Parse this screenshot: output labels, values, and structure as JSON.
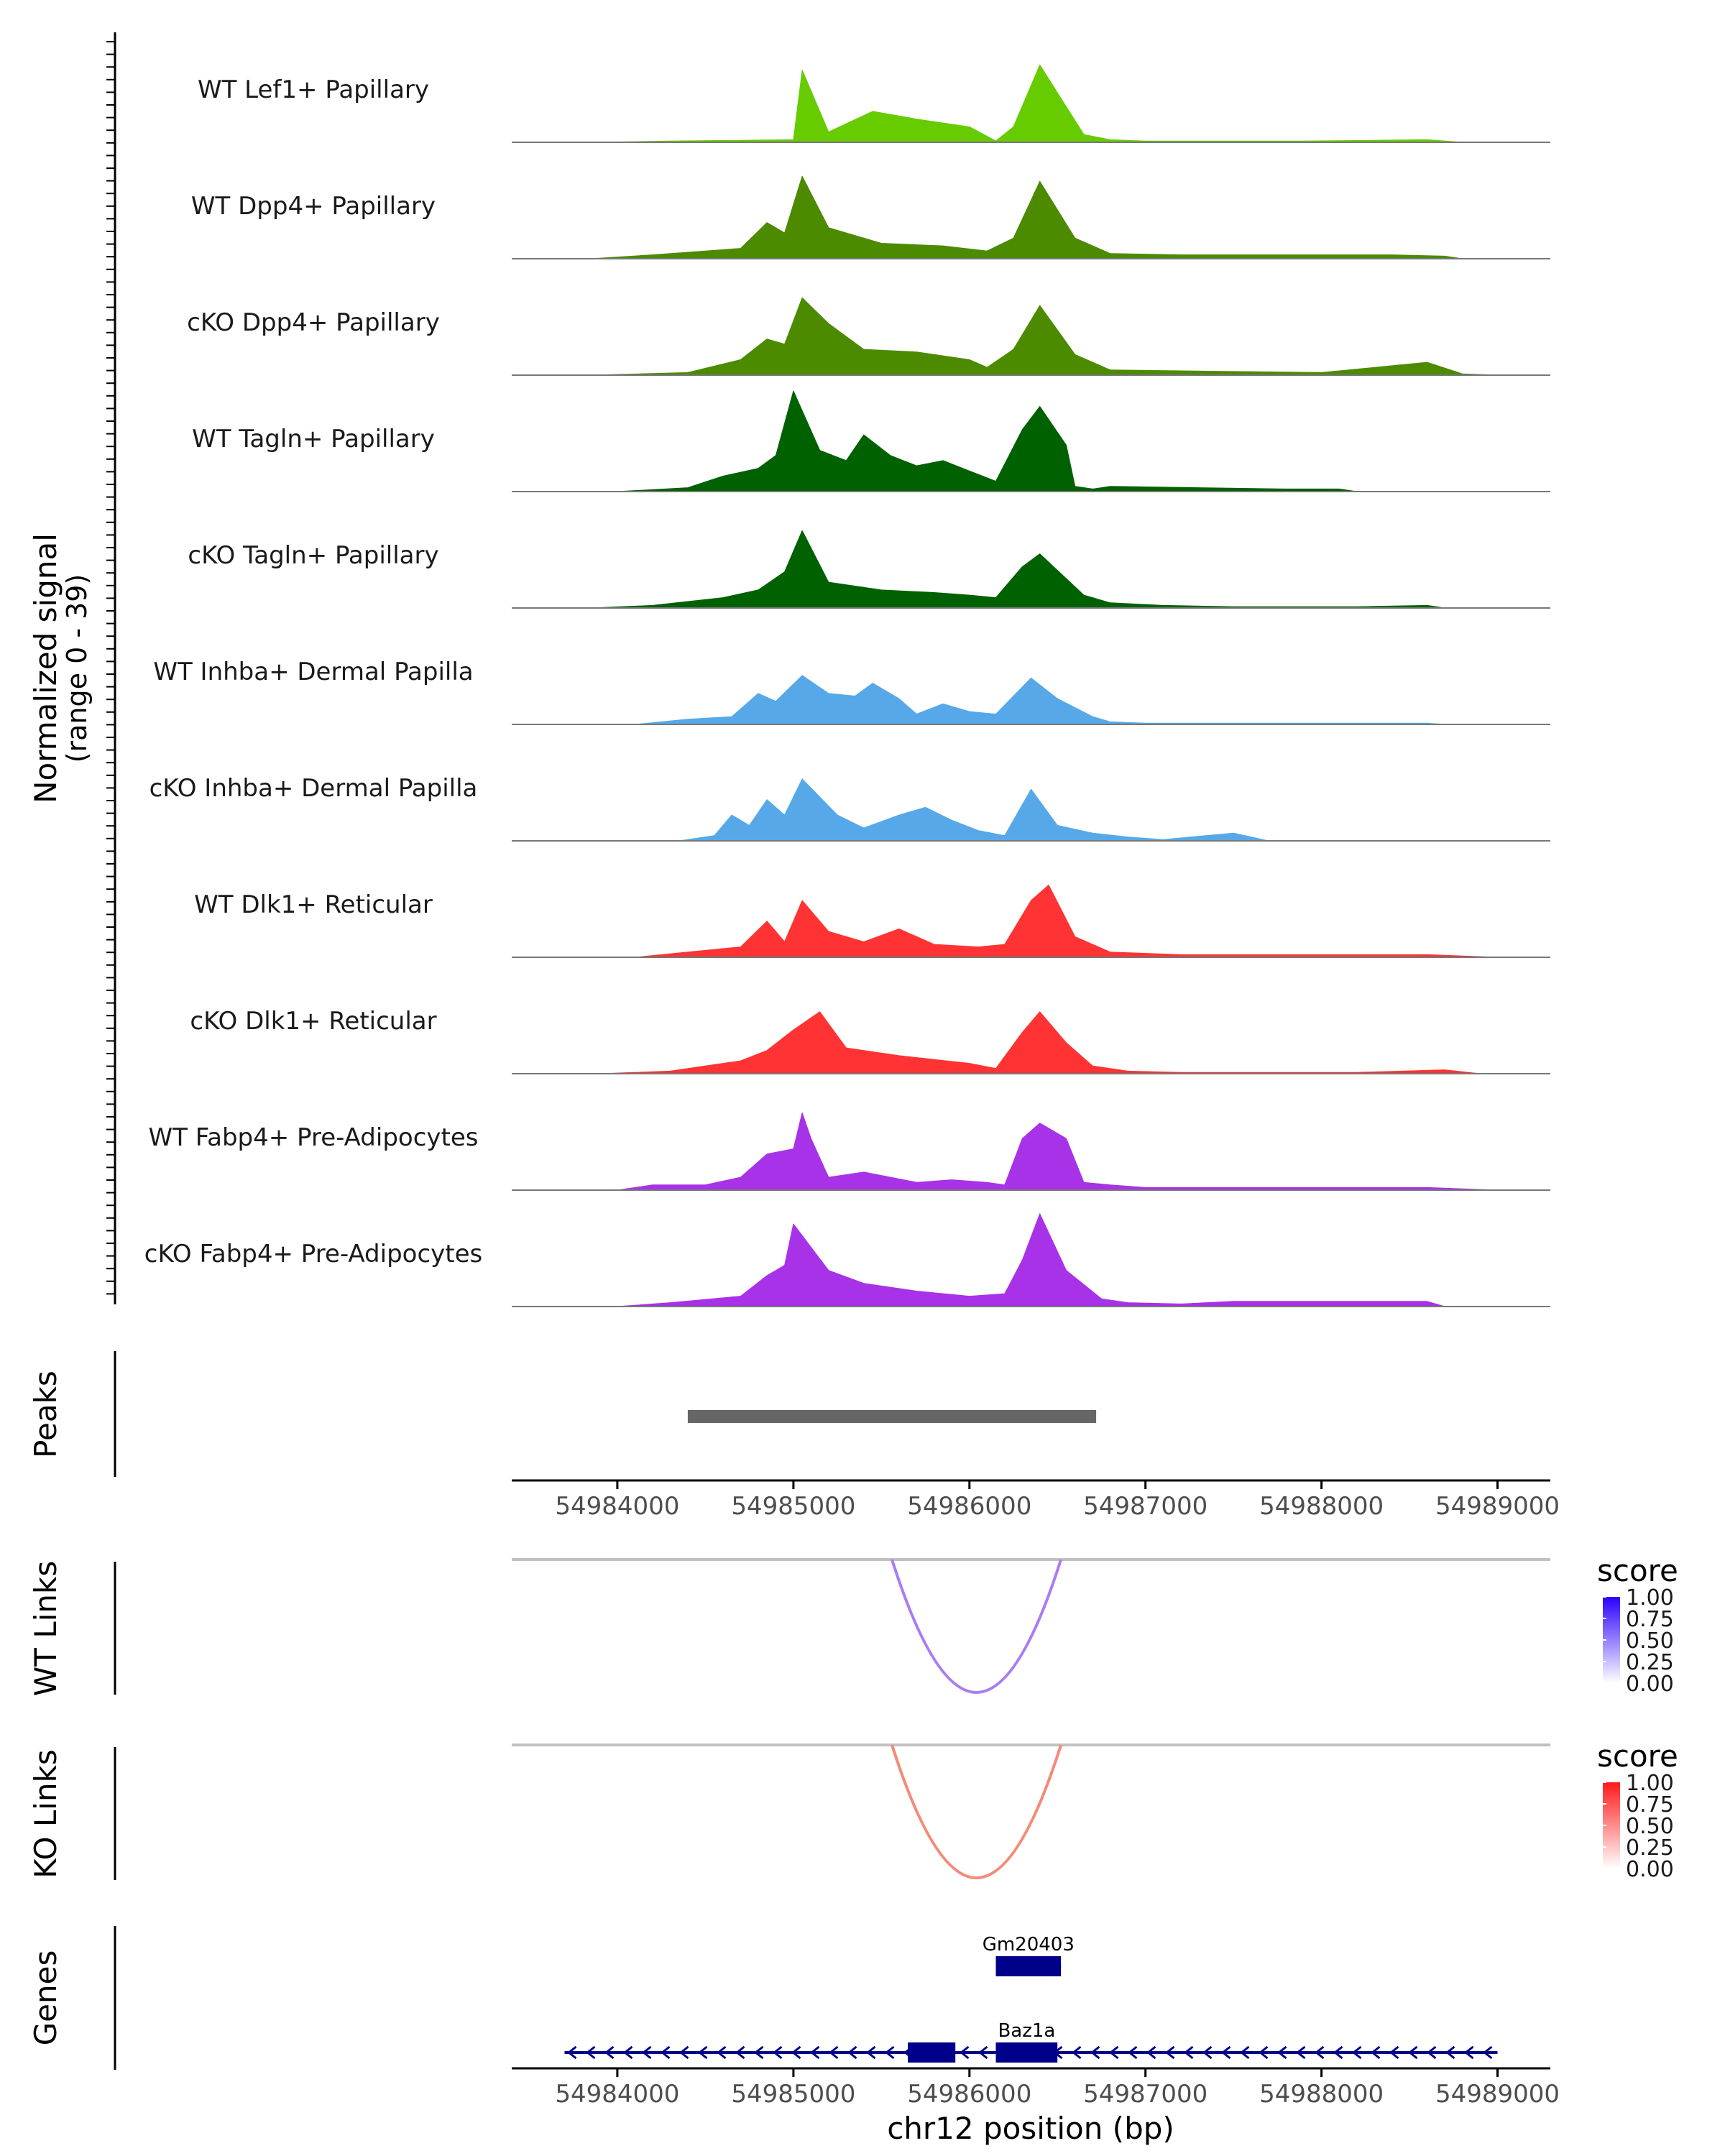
{
  "chart_data": {
    "type": "area",
    "title": "",
    "xlabel": "chr12 position (bp)",
    "ylabel": "Normalized signal",
    "ylabel_range": "(range 0 - 39)",
    "xlim": [
      54983400,
      54989300
    ],
    "ylim": [
      0,
      39
    ],
    "x_ticks": [
      54984000,
      54985000,
      54986000,
      54987000,
      54988000,
      54989000
    ],
    "x_tick_labels": [
      "54984000",
      "54985000",
      "54986000",
      "54987000",
      "54988000",
      "54989000"
    ],
    "series": [
      {
        "name": "WT Lef1+ Papillary",
        "color": "#66CC00",
        "points": [
          [
            54983900,
            0
          ],
          [
            54984300,
            0.5
          ],
          [
            54985000,
            1
          ],
          [
            54985050,
            28
          ],
          [
            54985200,
            4
          ],
          [
            54985450,
            12
          ],
          [
            54985700,
            9
          ],
          [
            54986000,
            6
          ],
          [
            54986150,
            0.5
          ],
          [
            54986250,
            6
          ],
          [
            54986400,
            30
          ],
          [
            54986650,
            3
          ],
          [
            54986800,
            1
          ],
          [
            54987000,
            0.5
          ],
          [
            54987900,
            0.5
          ],
          [
            54988600,
            1
          ],
          [
            54988800,
            0
          ]
        ]
      },
      {
        "name": "WT Dpp4+ Papillary",
        "color": "#4C8A00",
        "points": [
          [
            54983850,
            0
          ],
          [
            54984200,
            1.5
          ],
          [
            54984700,
            4
          ],
          [
            54984850,
            14
          ],
          [
            54984950,
            10
          ],
          [
            54985050,
            32
          ],
          [
            54985200,
            12
          ],
          [
            54985500,
            6
          ],
          [
            54985850,
            5
          ],
          [
            54986100,
            3
          ],
          [
            54986250,
            8
          ],
          [
            54986400,
            30
          ],
          [
            54986600,
            8
          ],
          [
            54986800,
            2
          ],
          [
            54987200,
            1.5
          ],
          [
            54987900,
            1.5
          ],
          [
            54988400,
            1.5
          ],
          [
            54988700,
            1
          ],
          [
            54988800,
            0
          ]
        ]
      },
      {
        "name": "cKO Dpp4+ Papillary",
        "color": "#4C8A00",
        "points": [
          [
            54983850,
            0
          ],
          [
            54984400,
            1
          ],
          [
            54984700,
            6
          ],
          [
            54984850,
            14
          ],
          [
            54984950,
            12
          ],
          [
            54985050,
            30
          ],
          [
            54985200,
            20
          ],
          [
            54985400,
            10
          ],
          [
            54985700,
            9
          ],
          [
            54986000,
            6
          ],
          [
            54986100,
            3
          ],
          [
            54986250,
            10
          ],
          [
            54986400,
            27
          ],
          [
            54986600,
            8
          ],
          [
            54986800,
            2
          ],
          [
            54987400,
            1.5
          ],
          [
            54988000,
            1
          ],
          [
            54988600,
            5
          ],
          [
            54988800,
            0.5
          ],
          [
            54989000,
            0
          ]
        ]
      },
      {
        "name": "WT Tagln+ Papillary",
        "color": "#006100",
        "points": [
          [
            54984000,
            0
          ],
          [
            54984400,
            1.5
          ],
          [
            54984600,
            6
          ],
          [
            54984800,
            9
          ],
          [
            54984900,
            14
          ],
          [
            54985000,
            39
          ],
          [
            54985150,
            16
          ],
          [
            54985300,
            12
          ],
          [
            54985400,
            22
          ],
          [
            54985550,
            14
          ],
          [
            54985700,
            10
          ],
          [
            54985850,
            12
          ],
          [
            54986000,
            8
          ],
          [
            54986150,
            4
          ],
          [
            54986300,
            24
          ],
          [
            54986400,
            33
          ],
          [
            54986550,
            18
          ],
          [
            54986600,
            2
          ],
          [
            54986700,
            1
          ],
          [
            54986800,
            2
          ],
          [
            54987800,
            1
          ],
          [
            54988100,
            1
          ],
          [
            54988200,
            0
          ]
        ]
      },
      {
        "name": "cKO Tagln+ Papillary",
        "color": "#006100",
        "points": [
          [
            54983850,
            0
          ],
          [
            54984200,
            1
          ],
          [
            54984600,
            4
          ],
          [
            54984800,
            7
          ],
          [
            54984950,
            14
          ],
          [
            54985050,
            30
          ],
          [
            54985200,
            10
          ],
          [
            54985500,
            7
          ],
          [
            54985800,
            6
          ],
          [
            54986000,
            5
          ],
          [
            54986150,
            4
          ],
          [
            54986300,
            16
          ],
          [
            54986400,
            21
          ],
          [
            54986650,
            5
          ],
          [
            54986800,
            2
          ],
          [
            54987100,
            1
          ],
          [
            54987500,
            0.5
          ],
          [
            54988200,
            0.5
          ],
          [
            54988600,
            1
          ],
          [
            54988700,
            0
          ]
        ]
      },
      {
        "name": "WT Inhba+ Dermal Papilla",
        "color": "#56A8E8",
        "points": [
          [
            54984100,
            0
          ],
          [
            54984400,
            2
          ],
          [
            54984650,
            3
          ],
          [
            54984800,
            12
          ],
          [
            54984900,
            9
          ],
          [
            54985050,
            19
          ],
          [
            54985200,
            12
          ],
          [
            54985350,
            11
          ],
          [
            54985450,
            16
          ],
          [
            54985600,
            10
          ],
          [
            54985700,
            4
          ],
          [
            54985850,
            8
          ],
          [
            54986000,
            5
          ],
          [
            54986150,
            4
          ],
          [
            54986350,
            18
          ],
          [
            54986500,
            10
          ],
          [
            54986700,
            3
          ],
          [
            54986800,
            1
          ],
          [
            54987000,
            0.5
          ],
          [
            54987200,
            0.5
          ],
          [
            54988600,
            0.5
          ],
          [
            54988700,
            0
          ]
        ]
      },
      {
        "name": "cKO Inhba+ Dermal Papilla",
        "color": "#56A8E8",
        "points": [
          [
            54984350,
            0
          ],
          [
            54984550,
            2
          ],
          [
            54984650,
            10
          ],
          [
            54984750,
            6
          ],
          [
            54984850,
            16
          ],
          [
            54984950,
            10
          ],
          [
            54985050,
            24
          ],
          [
            54985250,
            10
          ],
          [
            54985400,
            5
          ],
          [
            54985600,
            10
          ],
          [
            54985750,
            13
          ],
          [
            54985900,
            8
          ],
          [
            54986050,
            4
          ],
          [
            54986200,
            2
          ],
          [
            54986350,
            20
          ],
          [
            54986500,
            6
          ],
          [
            54986700,
            3
          ],
          [
            54986900,
            1.5
          ],
          [
            54987100,
            0.5
          ],
          [
            54987500,
            3
          ],
          [
            54987700,
            0
          ]
        ]
      },
      {
        "name": "WT Dlk1+ Reticular",
        "color": "#FF3333",
        "points": [
          [
            54984100,
            0
          ],
          [
            54984400,
            2
          ],
          [
            54984700,
            4
          ],
          [
            54984850,
            14
          ],
          [
            54984950,
            6
          ],
          [
            54985050,
            22
          ],
          [
            54985200,
            10
          ],
          [
            54985400,
            6
          ],
          [
            54985600,
            11
          ],
          [
            54985800,
            5
          ],
          [
            54986050,
            4
          ],
          [
            54986200,
            5
          ],
          [
            54986350,
            22
          ],
          [
            54986450,
            28
          ],
          [
            54986600,
            8
          ],
          [
            54986800,
            2
          ],
          [
            54987200,
            1
          ],
          [
            54987600,
            1
          ],
          [
            54988200,
            1
          ],
          [
            54988600,
            1
          ],
          [
            54989000,
            0
          ]
        ]
      },
      {
        "name": "cKO Dlk1+ Reticular",
        "color": "#FF3333",
        "points": [
          [
            54983900,
            0
          ],
          [
            54984300,
            1
          ],
          [
            54984700,
            5
          ],
          [
            54984850,
            9
          ],
          [
            54985000,
            17
          ],
          [
            54985150,
            24
          ],
          [
            54985300,
            10
          ],
          [
            54985600,
            7
          ],
          [
            54986000,
            4
          ],
          [
            54986150,
            2
          ],
          [
            54986300,
            16
          ],
          [
            54986400,
            24
          ],
          [
            54986550,
            12
          ],
          [
            54986700,
            3
          ],
          [
            54986900,
            1
          ],
          [
            54987200,
            0.5
          ],
          [
            54988200,
            0.5
          ],
          [
            54988700,
            1.5
          ],
          [
            54988900,
            0
          ]
        ]
      },
      {
        "name": "WT Fabp4+ Pre-Adipocytes",
        "color": "#A832E8",
        "points": [
          [
            54984000,
            0
          ],
          [
            54984200,
            2
          ],
          [
            54984500,
            2
          ],
          [
            54984700,
            5
          ],
          [
            54984850,
            14
          ],
          [
            54985000,
            16
          ],
          [
            54985050,
            30
          ],
          [
            54985100,
            20
          ],
          [
            54985200,
            5
          ],
          [
            54985400,
            7
          ],
          [
            54985700,
            3
          ],
          [
            54985900,
            4
          ],
          [
            54986100,
            3
          ],
          [
            54986200,
            2
          ],
          [
            54986300,
            20
          ],
          [
            54986400,
            26
          ],
          [
            54986550,
            20
          ],
          [
            54986650,
            3
          ],
          [
            54986800,
            2
          ],
          [
            54987000,
            1
          ],
          [
            54988600,
            1
          ],
          [
            54989000,
            0
          ]
        ]
      },
      {
        "name": "cKO Fabp4+ Pre-Adipocytes",
        "color": "#A832E8",
        "points": [
          [
            54984000,
            0
          ],
          [
            54984300,
            1.5
          ],
          [
            54984700,
            4
          ],
          [
            54984850,
            12
          ],
          [
            54984950,
            16
          ],
          [
            54985000,
            32
          ],
          [
            54985200,
            14
          ],
          [
            54985400,
            9
          ],
          [
            54985700,
            6
          ],
          [
            54986000,
            4
          ],
          [
            54986200,
            5
          ],
          [
            54986300,
            18
          ],
          [
            54986400,
            36
          ],
          [
            54986550,
            14
          ],
          [
            54986750,
            3
          ],
          [
            54986900,
            1.5
          ],
          [
            54987200,
            1
          ],
          [
            54987500,
            2
          ],
          [
            54988600,
            2
          ],
          [
            54988700,
            0
          ]
        ]
      }
    ],
    "peaks": {
      "label": "Peaks",
      "regions": [
        [
          54984400,
          54986720
        ]
      ]
    },
    "links": [
      {
        "label": "WT Links",
        "start": 54985560,
        "end": 54986520,
        "score": 0.55,
        "color": "#A87DF4",
        "legend_title": "score",
        "legend_ticks": [
          "1.00",
          "0.75",
          "0.50",
          "0.25",
          "0.00"
        ],
        "gradient_high": "#2C00FF",
        "gradient_low": "#FFFFFF"
      },
      {
        "label": "KO Links",
        "start": 54985560,
        "end": 54986520,
        "score": 0.55,
        "color": "#F48A78",
        "legend_title": "score",
        "legend_ticks": [
          "1.00",
          "0.75",
          "0.50",
          "0.25",
          "0.00"
        ],
        "gradient_high": "#FF1A1A",
        "gradient_low": "#FFFFFF"
      }
    ],
    "genes": {
      "label": "Genes",
      "color": "#00008B",
      "items": [
        {
          "name": "Gm20403",
          "strand": "+",
          "start": 54986150,
          "end": 54986520,
          "exons": [
            [
              54986150,
              54986520
            ]
          ]
        },
        {
          "name": "Baz1a",
          "strand": "-",
          "start": 54983700,
          "end": 54989000,
          "exons": [
            [
              54985650,
              54985920
            ],
            [
              54986150,
              54986500
            ]
          ]
        }
      ]
    }
  }
}
